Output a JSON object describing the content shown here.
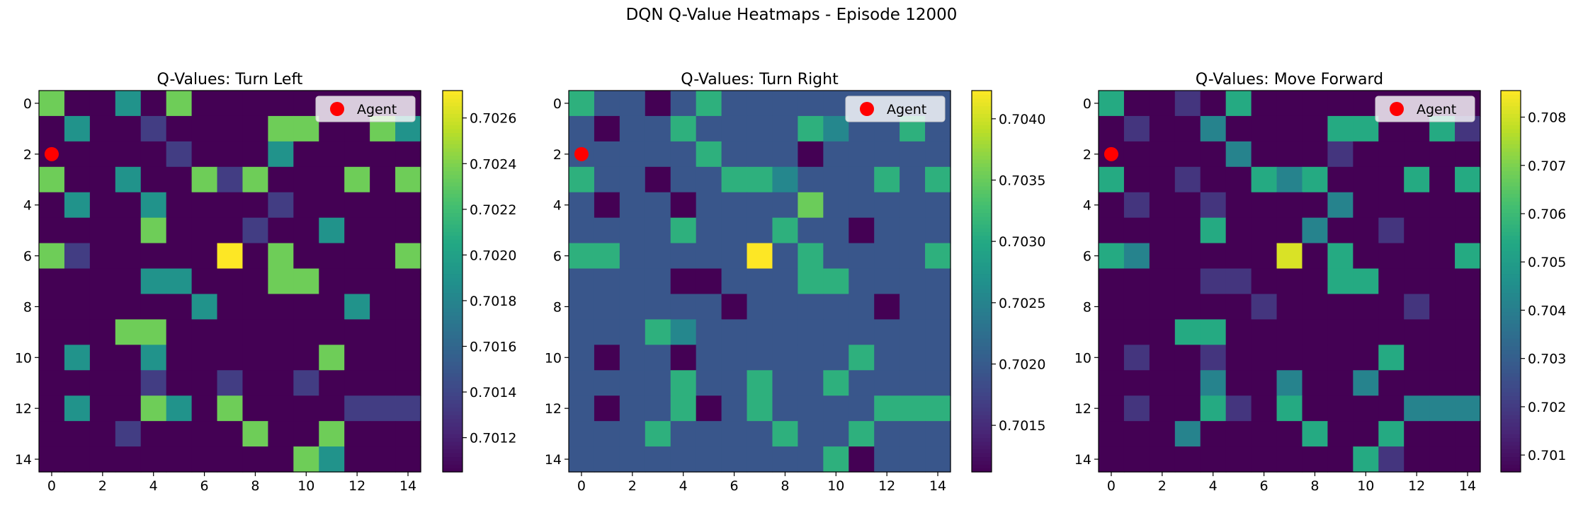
{
  "figure": {
    "suptitle": "DQN Q-Value Heatmaps - Episode 12000"
  },
  "chart_data": [
    {
      "type": "heatmap",
      "title": "Q-Values: Turn Left",
      "colormap": "viridis",
      "vmin": 0.70105,
      "vmax": 0.70272,
      "colorbar_ticks": [
        0.7012,
        0.7014,
        0.7016,
        0.7018,
        0.702,
        0.7022,
        0.7024,
        0.7026
      ],
      "colorbar_tick_labels": [
        "0.7012",
        "0.7014",
        "0.7016",
        "0.7018",
        "0.7020",
        "0.7022",
        "0.7024",
        "0.7026"
      ],
      "x_ticks": [
        0,
        2,
        4,
        6,
        8,
        10,
        12,
        14
      ],
      "y_ticks": [
        0,
        2,
        4,
        6,
        8,
        10,
        12,
        14
      ],
      "agent": {
        "x": 0,
        "y": 2,
        "color": "#ff0000",
        "label": "Agent"
      },
      "legend": "upper-right",
      "levels": [
        0.70105,
        0.70135,
        0.7019,
        0.70235,
        0.70272
      ],
      "grid": [
        [
          3,
          0,
          0,
          2,
          0,
          3,
          0,
          0,
          0,
          0,
          0,
          0,
          0,
          0,
          0
        ],
        [
          0,
          2,
          0,
          0,
          1,
          0,
          0,
          0,
          0,
          3,
          3,
          0,
          0,
          3,
          2
        ],
        [
          0,
          0,
          0,
          0,
          0,
          1,
          0,
          0,
          0,
          2,
          0,
          0,
          0,
          0,
          0
        ],
        [
          3,
          0,
          0,
          2,
          0,
          0,
          3,
          1,
          3,
          0,
          0,
          0,
          3,
          0,
          3
        ],
        [
          0,
          2,
          0,
          0,
          2,
          0,
          0,
          0,
          0,
          1,
          0,
          0,
          0,
          0,
          0
        ],
        [
          0,
          0,
          0,
          0,
          3,
          0,
          0,
          0,
          1,
          0,
          0,
          2,
          0,
          0,
          0
        ],
        [
          3,
          1,
          0,
          0,
          0,
          0,
          0,
          4,
          0,
          3,
          0,
          0,
          0,
          0,
          3
        ],
        [
          0,
          0,
          0,
          0,
          2,
          2,
          0,
          0,
          0,
          3,
          3,
          0,
          0,
          0,
          0
        ],
        [
          0,
          0,
          0,
          0,
          0,
          0,
          2,
          0,
          0,
          0,
          0,
          0,
          2,
          0,
          0
        ],
        [
          0,
          0,
          0,
          3,
          3,
          0,
          0,
          0,
          0,
          0,
          0,
          0,
          0,
          0,
          0
        ],
        [
          0,
          2,
          0,
          0,
          2,
          0,
          0,
          0,
          0,
          0,
          0,
          3,
          0,
          0,
          0
        ],
        [
          0,
          0,
          0,
          0,
          1,
          0,
          0,
          1,
          0,
          0,
          1,
          0,
          0,
          0,
          0
        ],
        [
          0,
          2,
          0,
          0,
          3,
          2,
          0,
          3,
          0,
          0,
          0,
          0,
          1,
          1,
          1
        ],
        [
          0,
          0,
          0,
          1,
          0,
          0,
          0,
          0,
          3,
          0,
          0,
          3,
          0,
          0,
          0
        ],
        [
          0,
          0,
          0,
          0,
          0,
          0,
          0,
          0,
          0,
          0,
          3,
          2,
          0,
          0,
          0
        ]
      ]
    },
    {
      "type": "heatmap",
      "title": "Q-Values: Turn Right",
      "colormap": "viridis",
      "vmin": 0.70112,
      "vmax": 0.70423,
      "colorbar_ticks": [
        0.7015,
        0.702,
        0.7025,
        0.703,
        0.7035,
        0.704
      ],
      "colorbar_tick_labels": [
        "0.7015",
        "0.7020",
        "0.7025",
        "0.7030",
        "0.7035",
        "0.7040"
      ],
      "x_ticks": [
        0,
        2,
        4,
        6,
        8,
        10,
        12,
        14
      ],
      "y_ticks": [
        0,
        2,
        4,
        6,
        8,
        10,
        12,
        14
      ],
      "agent": {
        "x": 0,
        "y": 2,
        "color": "#ff0000",
        "label": "Agent"
      },
      "legend": "upper-right",
      "levels": [
        0.70112,
        0.70195,
        0.70255,
        0.7031,
        0.70352,
        0.70423
      ],
      "grid": [
        [
          3,
          1,
          1,
          0,
          1,
          3,
          1,
          1,
          1,
          1,
          1,
          1,
          1,
          1,
          1
        ],
        [
          1,
          0,
          1,
          1,
          3,
          1,
          1,
          1,
          1,
          3,
          2,
          1,
          1,
          3,
          1
        ],
        [
          1,
          1,
          1,
          1,
          1,
          3,
          1,
          1,
          1,
          0,
          1,
          1,
          1,
          1,
          1
        ],
        [
          3,
          1,
          1,
          0,
          1,
          1,
          3,
          3,
          2,
          1,
          1,
          1,
          3,
          1,
          3
        ],
        [
          1,
          0,
          1,
          1,
          0,
          1,
          1,
          1,
          1,
          4,
          1,
          1,
          1,
          1,
          1
        ],
        [
          1,
          1,
          1,
          1,
          3,
          1,
          1,
          1,
          3,
          1,
          1,
          0,
          1,
          1,
          1
        ],
        [
          3,
          3,
          1,
          1,
          1,
          1,
          1,
          5,
          1,
          3,
          1,
          1,
          1,
          1,
          3
        ],
        [
          1,
          1,
          1,
          1,
          0,
          0,
          1,
          1,
          1,
          3,
          3,
          1,
          1,
          1,
          1
        ],
        [
          1,
          1,
          1,
          1,
          1,
          1,
          0,
          1,
          1,
          1,
          1,
          1,
          0,
          1,
          1
        ],
        [
          1,
          1,
          1,
          3,
          2,
          1,
          1,
          1,
          1,
          1,
          1,
          1,
          1,
          1,
          1
        ],
        [
          1,
          0,
          1,
          1,
          0,
          1,
          1,
          1,
          1,
          1,
          1,
          3,
          1,
          1,
          1
        ],
        [
          1,
          1,
          1,
          1,
          3,
          1,
          1,
          3,
          1,
          1,
          3,
          1,
          1,
          1,
          1
        ],
        [
          1,
          0,
          1,
          1,
          3,
          0,
          1,
          3,
          1,
          1,
          1,
          1,
          3,
          3,
          3
        ],
        [
          1,
          1,
          1,
          3,
          1,
          1,
          1,
          1,
          3,
          1,
          1,
          3,
          1,
          1,
          1
        ],
        [
          1,
          1,
          1,
          1,
          1,
          1,
          1,
          1,
          1,
          1,
          3,
          0,
          1,
          1,
          1
        ]
      ]
    },
    {
      "type": "heatmap",
      "title": "Q-Values: Move Forward",
      "colormap": "viridis",
      "vmin": 0.70065,
      "vmax": 0.70855,
      "colorbar_ticks": [
        0.701,
        0.702,
        0.703,
        0.704,
        0.705,
        0.706,
        0.707,
        0.708
      ],
      "colorbar_tick_labels": [
        "0.701",
        "0.702",
        "0.703",
        "0.704",
        "0.705",
        "0.706",
        "0.707",
        "0.708"
      ],
      "x_ticks": [
        0,
        2,
        4,
        6,
        8,
        10,
        12,
        14
      ],
      "y_ticks": [
        0,
        2,
        4,
        6,
        8,
        10,
        12,
        14
      ],
      "agent": {
        "x": 0,
        "y": 2,
        "color": "#ff0000",
        "label": "Agent"
      },
      "legend": "upper-right",
      "levels": [
        0.70065,
        0.70185,
        0.7036,
        0.70415,
        0.70545,
        0.7081
      ],
      "grid": [
        [
          4,
          0,
          0,
          1,
          0,
          4,
          0,
          0,
          0,
          0,
          0,
          0,
          0,
          0,
          0
        ],
        [
          0,
          1,
          0,
          0,
          3,
          0,
          0,
          0,
          0,
          4,
          4,
          0,
          0,
          4,
          1
        ],
        [
          0,
          0,
          0,
          0,
          0,
          3,
          0,
          0,
          0,
          1,
          0,
          0,
          0,
          0,
          0
        ],
        [
          4,
          0,
          0,
          1,
          0,
          0,
          4,
          3,
          4,
          0,
          0,
          0,
          4,
          0,
          4
        ],
        [
          0,
          1,
          0,
          0,
          1,
          0,
          0,
          0,
          0,
          3,
          0,
          0,
          0,
          0,
          0
        ],
        [
          0,
          0,
          0,
          0,
          4,
          0,
          0,
          0,
          3,
          0,
          0,
          1,
          0,
          0,
          0
        ],
        [
          4,
          3,
          0,
          0,
          0,
          0,
          0,
          5,
          0,
          4,
          0,
          0,
          0,
          0,
          4
        ],
        [
          0,
          0,
          0,
          0,
          1,
          1,
          0,
          0,
          0,
          4,
          4,
          0,
          0,
          0,
          0
        ],
        [
          0,
          0,
          0,
          0,
          0,
          0,
          1,
          0,
          0,
          0,
          0,
          0,
          1,
          0,
          0
        ],
        [
          0,
          0,
          0,
          4,
          4,
          0,
          0,
          0,
          0,
          0,
          0,
          0,
          0,
          0,
          0
        ],
        [
          0,
          1,
          0,
          0,
          1,
          0,
          0,
          0,
          0,
          0,
          0,
          4,
          0,
          0,
          0
        ],
        [
          0,
          0,
          0,
          0,
          3,
          0,
          0,
          3,
          0,
          0,
          3,
          0,
          0,
          0,
          0
        ],
        [
          0,
          1,
          0,
          0,
          4,
          1,
          0,
          4,
          0,
          0,
          0,
          0,
          3,
          3,
          3
        ],
        [
          0,
          0,
          0,
          3,
          0,
          0,
          0,
          0,
          4,
          0,
          0,
          4,
          0,
          0,
          0
        ],
        [
          0,
          0,
          0,
          0,
          0,
          0,
          0,
          0,
          0,
          0,
          4,
          1,
          0,
          0,
          0
        ]
      ]
    }
  ]
}
